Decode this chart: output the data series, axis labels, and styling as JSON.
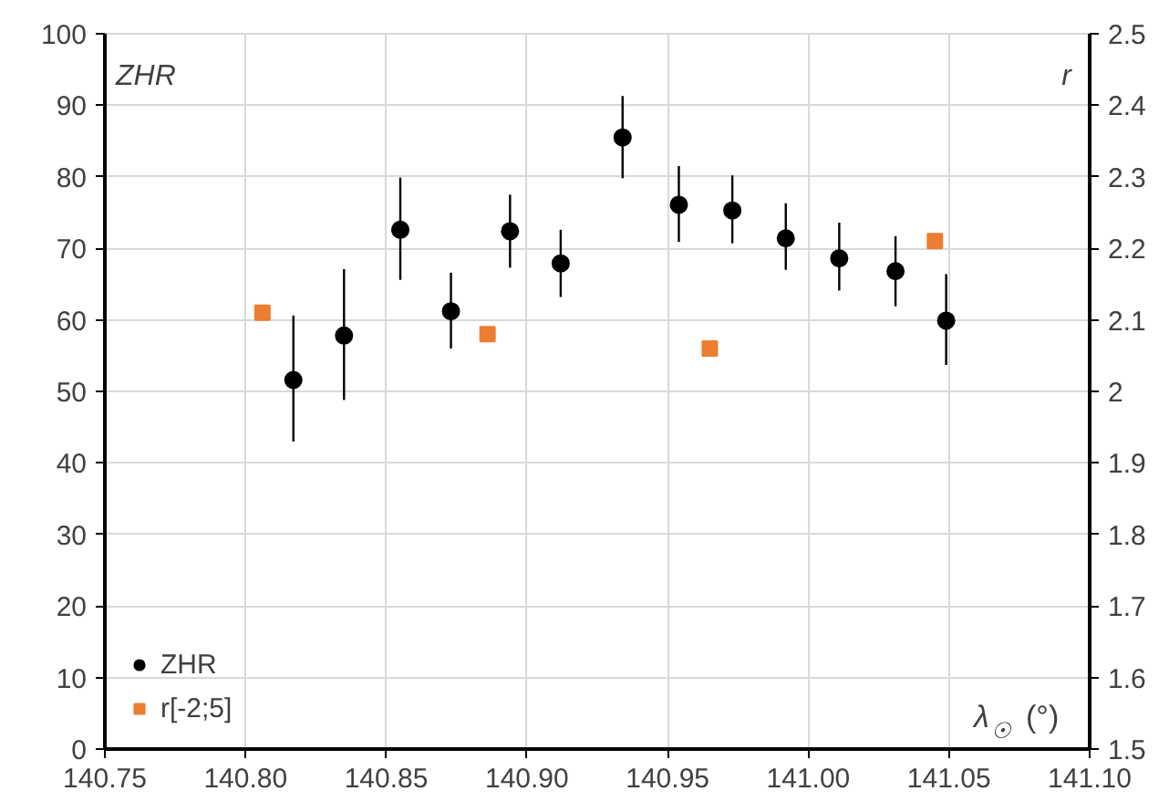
{
  "chart_data": {
    "type": "scatter",
    "xlabel": "λ$_{☉}$ (°)",
    "ylabel": "ZHR",
    "y2label": "r",
    "xlim": [
      140.75,
      141.1
    ],
    "xticks": [
      {
        "value": 140.75,
        "label": "140.75"
      },
      {
        "value": 140.8,
        "label": "140.80"
      },
      {
        "value": 140.85,
        "label": "140.85"
      },
      {
        "value": 140.9,
        "label": "140.90"
      },
      {
        "value": 140.95,
        "label": "140.95"
      },
      {
        "value": 141.0,
        "label": "141.00"
      },
      {
        "value": 141.05,
        "label": "141.05"
      },
      {
        "value": 141.1,
        "label": "141.10"
      }
    ],
    "ylim": [
      0,
      100
    ],
    "yticks": [
      0,
      10,
      20,
      30,
      40,
      50,
      60,
      70,
      80,
      90,
      100
    ],
    "y2lim": [
      1.5,
      2.5
    ],
    "y2ticks": [
      1.5,
      1.6,
      1.7,
      1.8,
      1.9,
      2,
      2.1,
      2.2,
      2.3,
      2.4,
      2.5
    ],
    "grid": true,
    "legend": "bottom left",
    "series": [
      {
        "name": "ZHR",
        "color": "#000000",
        "marker": "circle",
        "x": [
          140.817,
          140.835,
          140.855,
          140.873,
          140.894,
          140.912,
          140.934,
          140.954,
          140.973,
          140.992,
          141.011,
          141.031,
          141.049
        ],
        "values": [
          51.6,
          57.8,
          72.6,
          61.2,
          72.4,
          67.9,
          85.5,
          76.1,
          75.3,
          71.4,
          68.6,
          66.8,
          59.9
        ],
        "errors": [
          [
            43.0,
            60.6
          ],
          [
            48.8,
            67.1
          ],
          [
            65.6,
            79.9
          ],
          [
            56.0,
            66.6
          ],
          [
            67.3,
            77.5
          ],
          [
            63.2,
            72.6
          ],
          [
            79.8,
            91.3
          ],
          [
            70.9,
            81.5
          ],
          [
            70.7,
            80.2
          ],
          [
            67.0,
            76.3
          ],
          [
            64.1,
            73.6
          ],
          [
            61.9,
            71.7
          ],
          [
            53.7,
            66.4
          ]
        ]
      },
      {
        "name": "r[-2;5]",
        "color": "#ed7d31",
        "marker": "square",
        "axis": "y2",
        "x": [
          140.806,
          140.886,
          140.965,
          141.045
        ],
        "values": [
          2.11,
          2.08,
          2.06,
          2.21
        ]
      }
    ]
  }
}
